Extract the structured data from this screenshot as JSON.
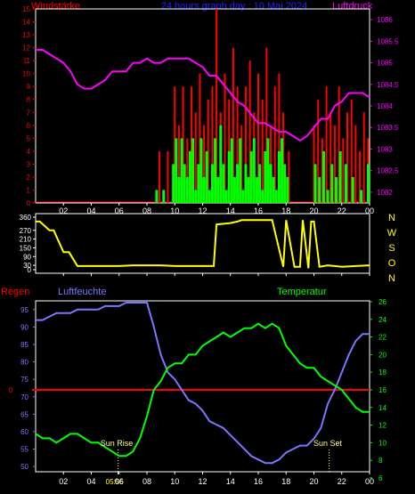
{
  "header": {
    "wind_label": "Windstärke",
    "title": "24 hours graph day : 10 Mai 2024",
    "pressure_label": "Luftdruck"
  },
  "lower_labels": {
    "rain": "Regen",
    "humidity": "Luftfeuchte",
    "temperature": "Temperatur",
    "sunrise": "Sun Rise",
    "sunset": "Sun Set",
    "sunrise_tick": "05:56"
  },
  "colors": {
    "wind_label": "#ff0000",
    "title": "#2222ff",
    "pressure": "#ff00ff",
    "gust": "#ff0000",
    "wind": "#00ff00",
    "direction": "#ffff00",
    "rain": "#ff0000",
    "humidity": "#7777ff",
    "temperature": "#00ff00",
    "axis": "#ffffff",
    "sun": "#ffff88"
  },
  "chart_data": [
    {
      "type": "line",
      "name": "wind-pressure",
      "x_ticks": [
        "02",
        "04",
        "06",
        "08",
        "10",
        "12",
        "14",
        "16",
        "18",
        "20",
        "22",
        "00"
      ],
      "wind_axis": {
        "ylim": [
          0,
          15
        ],
        "ticks": [
          "0",
          "1",
          "2",
          "3",
          "4",
          "5",
          "6",
          "7",
          "8",
          "9",
          "10",
          "11",
          "12",
          "13",
          "14",
          "15"
        ]
      },
      "pressure_axis": {
        "ylim": [
          1081.75,
          1086.25
        ],
        "ticks": [
          "1082",
          "1082.5",
          "1083",
          "1083.5",
          "1084",
          "1084.5",
          "1085",
          "1085.5",
          "1086"
        ]
      },
      "pressure": {
        "x": [
          0,
          0.5,
          1,
          1.5,
          2,
          2.5,
          3,
          3.5,
          4,
          4.5,
          5,
          5.5,
          6,
          6.5,
          7,
          7.5,
          8,
          8.5,
          9,
          9.5,
          10,
          10.5,
          11,
          11.5,
          12,
          12.5,
          13,
          13.5,
          14,
          14.5,
          15,
          15.5,
          16,
          16.5,
          17,
          17.5,
          18,
          18.5,
          19,
          19.5,
          20,
          20.5,
          21,
          21.5,
          22,
          22.5,
          23,
          23.5,
          24
        ],
        "y": [
          1085.3,
          1085.3,
          1085.2,
          1085.1,
          1085.0,
          1084.8,
          1084.5,
          1084.4,
          1084.4,
          1084.5,
          1084.6,
          1084.8,
          1084.8,
          1084.8,
          1085.0,
          1085.0,
          1085.1,
          1085.0,
          1085.0,
          1085.1,
          1085.1,
          1085.1,
          1085.1,
          1085.0,
          1084.9,
          1084.7,
          1084.7,
          1084.5,
          1084.3,
          1084.1,
          1084.0,
          1083.8,
          1083.6,
          1083.6,
          1083.5,
          1083.4,
          1083.4,
          1083.3,
          1083.2,
          1083.3,
          1083.5,
          1083.7,
          1083.7,
          1084.0,
          1084.1,
          1084.3,
          1084.3,
          1084.3,
          1084.2
        ]
      },
      "wind": {
        "x": [
          8.7,
          9.2,
          9.9,
          10.1,
          10.3,
          10.5,
          10.7,
          10.9,
          11.1,
          11.3,
          11.5,
          11.7,
          11.9,
          12.1,
          12.3,
          12.5,
          12.7,
          12.9,
          13.1,
          13.3,
          13.5,
          13.7,
          13.9,
          14.1,
          14.3,
          14.5,
          14.7,
          14.9,
          15.1,
          15.3,
          15.5,
          15.7,
          15.9,
          16.1,
          16.3,
          16.5,
          16.7,
          16.9,
          17.1,
          17.3,
          17.5,
          17.7,
          17.9,
          18.1,
          20.1,
          20.4,
          20.7,
          21.0,
          21.3,
          21.6,
          21.9,
          22.3,
          22.8,
          23.4,
          23.9
        ],
        "y": [
          1,
          1,
          3,
          5,
          2,
          5,
          3,
          2,
          4,
          5,
          1,
          3,
          5,
          2,
          4,
          1,
          3,
          5,
          2,
          6,
          3,
          1,
          4,
          5,
          2,
          3,
          5,
          1,
          3,
          2,
          4,
          5,
          2,
          3,
          1,
          4,
          5,
          3,
          2,
          1,
          4,
          5,
          3,
          2,
          3,
          2,
          4,
          1,
          3,
          2,
          4,
          3,
          2,
          1,
          3
        ]
      },
      "gust": {
        "x": [
          8.9,
          9.5,
          10.0,
          10.3,
          10.6,
          10.9,
          11.2,
          11.5,
          11.8,
          12.1,
          12.4,
          12.7,
          13.0,
          13.3,
          13.6,
          13.9,
          14.2,
          14.5,
          14.8,
          15.1,
          15.4,
          15.7,
          16.0,
          16.3,
          16.6,
          16.9,
          17.2,
          17.5,
          17.8,
          18.2,
          20.0,
          20.3,
          20.6,
          20.9,
          21.2,
          21.5,
          21.8,
          22.1,
          22.4,
          22.7,
          23.0,
          23.3,
          23.6,
          23.9
        ],
        "y": [
          4,
          4,
          9,
          6,
          9,
          5,
          9,
          7,
          10,
          6,
          8,
          9,
          15,
          7,
          10,
          8,
          12,
          9,
          6,
          9,
          11,
          7,
          10,
          8,
          12,
          6,
          9,
          10,
          7,
          4,
          6,
          8,
          5,
          9,
          7,
          6,
          9,
          5,
          7,
          8,
          6,
          4,
          7,
          5
        ]
      }
    },
    {
      "type": "line",
      "name": "wind-direction",
      "x_ticks": [
        "02",
        "04",
        "06",
        "08",
        "10",
        "12",
        "14",
        "16",
        "18",
        "20",
        "22",
        "00"
      ],
      "ylim": [
        0,
        360
      ],
      "y_ticks": [
        "0",
        "30",
        "90",
        "150",
        "210",
        "270",
        "360"
      ],
      "compass_labels": [
        "N",
        "W",
        "S",
        "O",
        "N"
      ],
      "direction": {
        "x": [
          0,
          0.3,
          1.0,
          1.3,
          2.0,
          2.4,
          3.0,
          4.0,
          5.0,
          6.0,
          7.0,
          8.0,
          9.0,
          10.0,
          11.0,
          12.0,
          12.6,
          12.8,
          13.0,
          14.0,
          14.5,
          14.8,
          15.0,
          16.0,
          16.5,
          17.0,
          17.8,
          18.0,
          18.6,
          19.0,
          19.2,
          19.6,
          19.8,
          20.0,
          20.4,
          21.0,
          22.0,
          23.0,
          24.0
        ],
        "y": [
          330,
          330,
          270,
          270,
          120,
          120,
          25,
          25,
          25,
          25,
          30,
          30,
          30,
          25,
          25,
          25,
          25,
          25,
          310,
          320,
          330,
          340,
          340,
          340,
          340,
          340,
          20,
          340,
          20,
          20,
          340,
          10,
          330,
          330,
          20,
          30,
          20,
          25,
          30
        ]
      }
    },
    {
      "type": "line",
      "name": "humidity-temperature",
      "x_ticks": [
        "02",
        "04",
        "05:56",
        "06",
        "08",
        "10",
        "12",
        "14",
        "16",
        "18",
        "20",
        "22",
        "00"
      ],
      "humidity_axis": {
        "ylim": [
          48.5,
          97.5
        ],
        "ticks": [
          "50",
          "55",
          "60",
          "65",
          "70",
          "75",
          "80",
          "85",
          "90",
          "95"
        ]
      },
      "temperature_axis": {
        "ylim": [
          6.7,
          26.1
        ],
        "ticks": [
          "6",
          "8",
          "10",
          "12",
          "14",
          "16",
          "18",
          "20",
          "22",
          "24",
          "26"
        ]
      },
      "rain_value": "0",
      "humidity": {
        "x": [
          0,
          0.5,
          1,
          1.5,
          2,
          2.5,
          3,
          3.5,
          4,
          4.5,
          5,
          5.5,
          6,
          6.5,
          7,
          7.5,
          8,
          8.5,
          9,
          9.5,
          10,
          10.5,
          11,
          11.5,
          12,
          12.5,
          13,
          13.5,
          14,
          14.5,
          15,
          15.5,
          16,
          16.5,
          17,
          17.5,
          18,
          18.5,
          19,
          19.5,
          20,
          20.5,
          21,
          21.5,
          22,
          22.5,
          23,
          23.5,
          24
        ],
        "y": [
          92,
          92,
          93,
          94,
          94,
          94,
          95,
          95,
          95,
          95,
          96,
          96,
          96,
          97,
          97,
          97,
          97,
          90,
          82,
          77,
          75,
          72,
          69,
          68,
          66,
          63,
          62,
          61,
          59,
          57,
          55,
          53,
          52,
          51,
          51,
          52,
          54,
          55,
          56,
          56,
          58,
          61,
          68,
          72,
          77,
          82,
          86,
          88,
          88
        ]
      },
      "temperature": {
        "x": [
          0,
          0.5,
          1,
          1.5,
          2,
          2.5,
          3,
          3.5,
          4,
          4.5,
          5,
          5.5,
          6,
          6.5,
          7,
          7.5,
          8,
          8.5,
          9,
          9.5,
          10,
          10.5,
          11,
          11.5,
          12,
          12.5,
          13,
          13.5,
          14,
          14.5,
          15,
          15.5,
          16,
          16.5,
          17,
          17.5,
          18,
          18.5,
          19,
          19.5,
          20,
          20.5,
          21,
          21.5,
          22,
          22.5,
          23,
          23.5,
          24
        ],
        "y": [
          11,
          10.5,
          10.5,
          10,
          10.5,
          11,
          11,
          10.5,
          10,
          10,
          9.5,
          9,
          8.5,
          8.5,
          9,
          10.5,
          13,
          16,
          17,
          18.5,
          19,
          19,
          20,
          20,
          21,
          21.5,
          22,
          22.5,
          22,
          22.5,
          23,
          23,
          23.5,
          23,
          23.5,
          23,
          21,
          20,
          19,
          18.5,
          18.5,
          17.5,
          17,
          16.5,
          16,
          15,
          14,
          13.5,
          13.5
        ]
      }
    }
  ]
}
